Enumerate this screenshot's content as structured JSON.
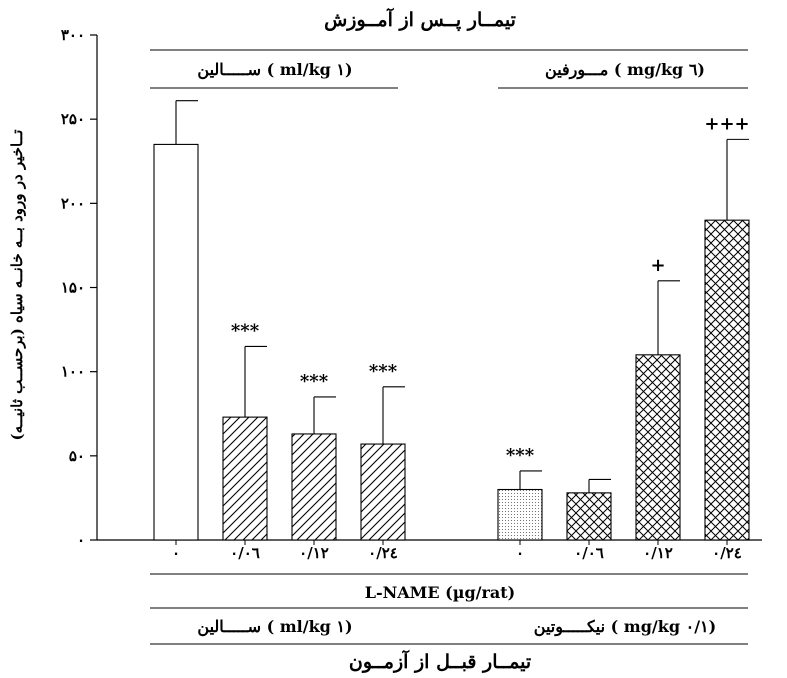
{
  "chart_data": {
    "type": "bar",
    "title": "تیمــار پــس از آمــوزش",
    "ylabel": "تــاخیر در ورود بــه خانــه سیاه (برحســب ثانیــه)",
    "ylim": [
      0,
      300
    ],
    "yticks": [
      0,
      50,
      100,
      150,
      200,
      250,
      300
    ],
    "ytick_labels": [
      "۰",
      "۵۰",
      "۱۰۰",
      "۱۵۰",
      "۲۰۰",
      "۲۵۰",
      "۳۰۰"
    ],
    "groups": [
      {
        "top_label": "ســـــالین ( ml/kg ۱)",
        "bottom_label": "ســـــالین ( ml/kg ۱)",
        "bars": [
          {
            "category": "۰",
            "value": 235,
            "error": 26,
            "annotation": "",
            "pattern": "empty"
          },
          {
            "category": "۰/۰٦",
            "value": 73,
            "error": 42,
            "annotation": "***",
            "pattern": "diagonal"
          },
          {
            "category": "۰/۱۲",
            "value": 63,
            "error": 22,
            "annotation": "***",
            "pattern": "diagonal"
          },
          {
            "category": "۰/۲٤",
            "value": 57,
            "error": 34,
            "annotation": "***",
            "pattern": "diagonal"
          }
        ]
      },
      {
        "top_label": "مـــورفین ( mg/kg ٦)",
        "bottom_label": "نیکـــــوتین ( mg/kg ۰/۱)",
        "bars": [
          {
            "category": "۰",
            "value": 30,
            "error": 11,
            "annotation": "***",
            "pattern": "dotted"
          },
          {
            "category": "۰/۰٦",
            "value": 28,
            "error": 8,
            "annotation": "",
            "pattern": "cross"
          },
          {
            "category": "۰/۱۲",
            "value": 110,
            "error": 44,
            "annotation": "+",
            "pattern": "cross"
          },
          {
            "category": "۰/۲٤",
            "value": 190,
            "error": 48,
            "annotation": "+++",
            "pattern": "cross"
          }
        ]
      }
    ],
    "xlabel": "L-NAME (µg/rat)",
    "bottom_title": "تیمــار قبــل از آزمــون",
    "grid": false
  }
}
